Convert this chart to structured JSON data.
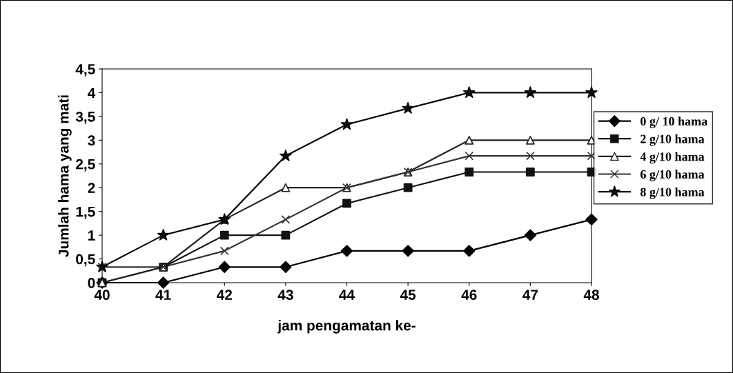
{
  "chart_data": {
    "type": "line",
    "xlabel": "jam pengamatan ke-",
    "ylabel": "Jumlah hama yang mati",
    "x": [
      40,
      41,
      42,
      43,
      44,
      45,
      46,
      47,
      48
    ],
    "xlim": [
      40,
      48
    ],
    "xticks": [
      40,
      41,
      42,
      43,
      44,
      45,
      46,
      47,
      48
    ],
    "ylim": [
      0,
      4.5
    ],
    "yticks": [
      0,
      {
        "value": 0.5,
        "label": "0,5"
      },
      1,
      {
        "value": 1.5,
        "label": "1,5"
      },
      2,
      {
        "value": 2.5,
        "label": "2,5"
      },
      3,
      {
        "value": 3.5,
        "label": "3,5"
      },
      4,
      {
        "value": 4.5,
        "label": "4,5"
      }
    ],
    "grid": false,
    "legend": "right",
    "line_style": "solid",
    "series": [
      {
        "name": "0 g/ 10 hama",
        "color": "#000000",
        "marker": "diamond",
        "values": [
          0,
          0,
          0.33,
          0.33,
          0.67,
          0.67,
          0.67,
          1,
          1.33
        ]
      },
      {
        "name": "2 g/10 hama",
        "color": "#111111",
        "marker": "square",
        "values": [
          0,
          0.33,
          1,
          1,
          1.67,
          2,
          2.33,
          2.33,
          2.33
        ]
      },
      {
        "name": "4 g/10 hama",
        "color": "#222222",
        "marker": "triangle",
        "values": [
          0,
          0.33,
          1.33,
          2,
          2,
          2.33,
          3,
          3,
          3
        ]
      },
      {
        "name": "6 g/10 hama",
        "color": "#333333",
        "marker": "cross",
        "values": [
          0.33,
          0.33,
          0.67,
          1.33,
          2,
          2.33,
          2.67,
          2.67,
          2.67
        ]
      },
      {
        "name": "8 g/10 hama",
        "color": "#0a0a0a",
        "marker": "star",
        "values": [
          0.33,
          1,
          1.33,
          2.67,
          3.33,
          3.67,
          4,
          4,
          4
        ]
      }
    ]
  }
}
